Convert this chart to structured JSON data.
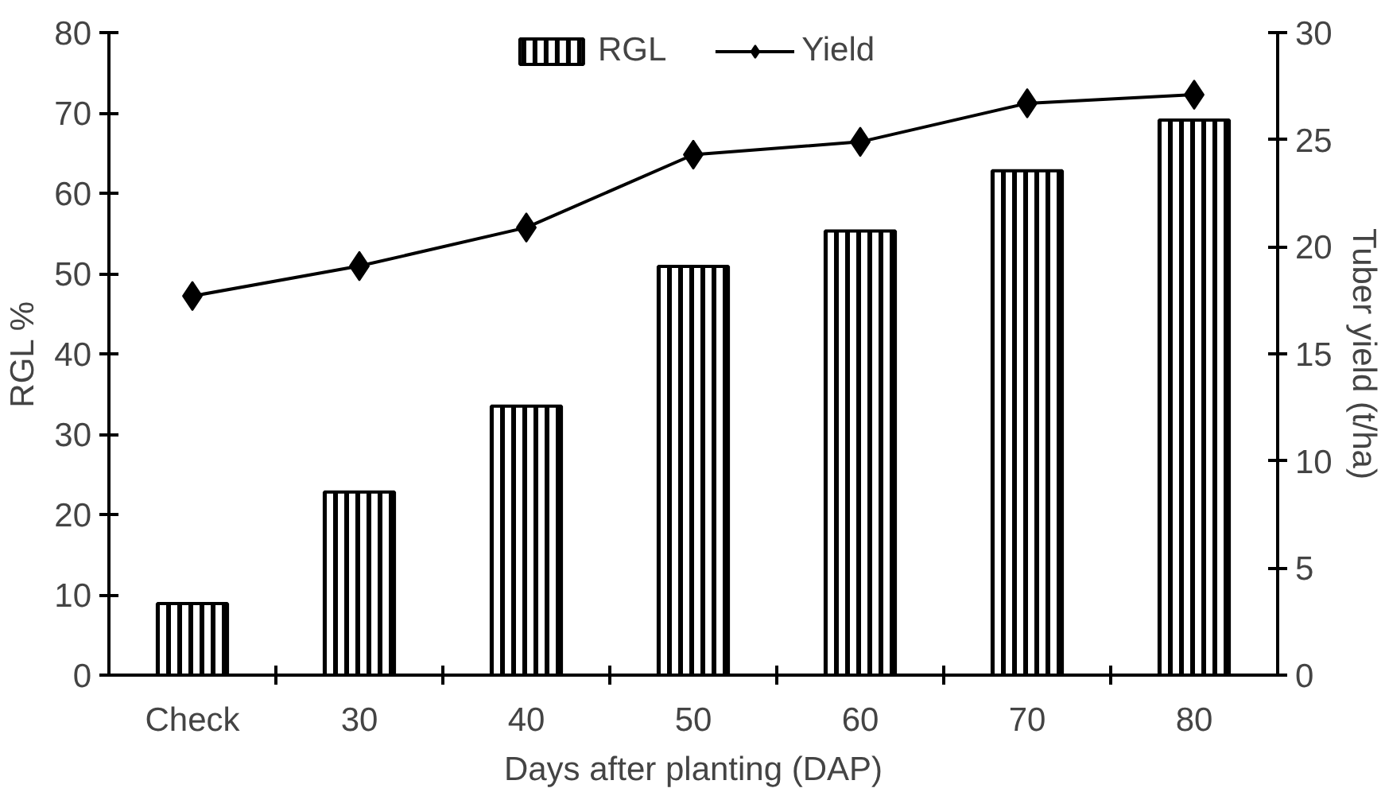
{
  "chart_data": {
    "type": "bar",
    "xlabel": "Days after planting (DAP)",
    "ylabel": "RGL %",
    "y2label": "Tuber yield (t/ha)",
    "categories": [
      "Check",
      "30",
      "40",
      "50",
      "60",
      "70",
      "80"
    ],
    "series": [
      {
        "name": "RGL",
        "color": "#000000",
        "values": [
          8.9,
          22.8,
          33.5,
          50.9,
          55.3,
          62.8,
          69.1
        ]
      },
      {
        "name": "Yield",
        "type": "line",
        "axis": "y2",
        "color": "#000000",
        "marker": "diamond",
        "line_style": "solid",
        "values": [
          17.7,
          19.1,
          20.9,
          24.3,
          24.9,
          26.7,
          27.1
        ]
      }
    ],
    "ylim": [
      0,
      80
    ],
    "yticks": [
      0,
      10,
      20,
      30,
      40,
      50,
      60,
      70,
      80
    ],
    "y2lim": [
      0,
      30
    ],
    "y2ticks": [
      0,
      5,
      10,
      15,
      20,
      25,
      30
    ],
    "legend": "top",
    "grid": false
  }
}
